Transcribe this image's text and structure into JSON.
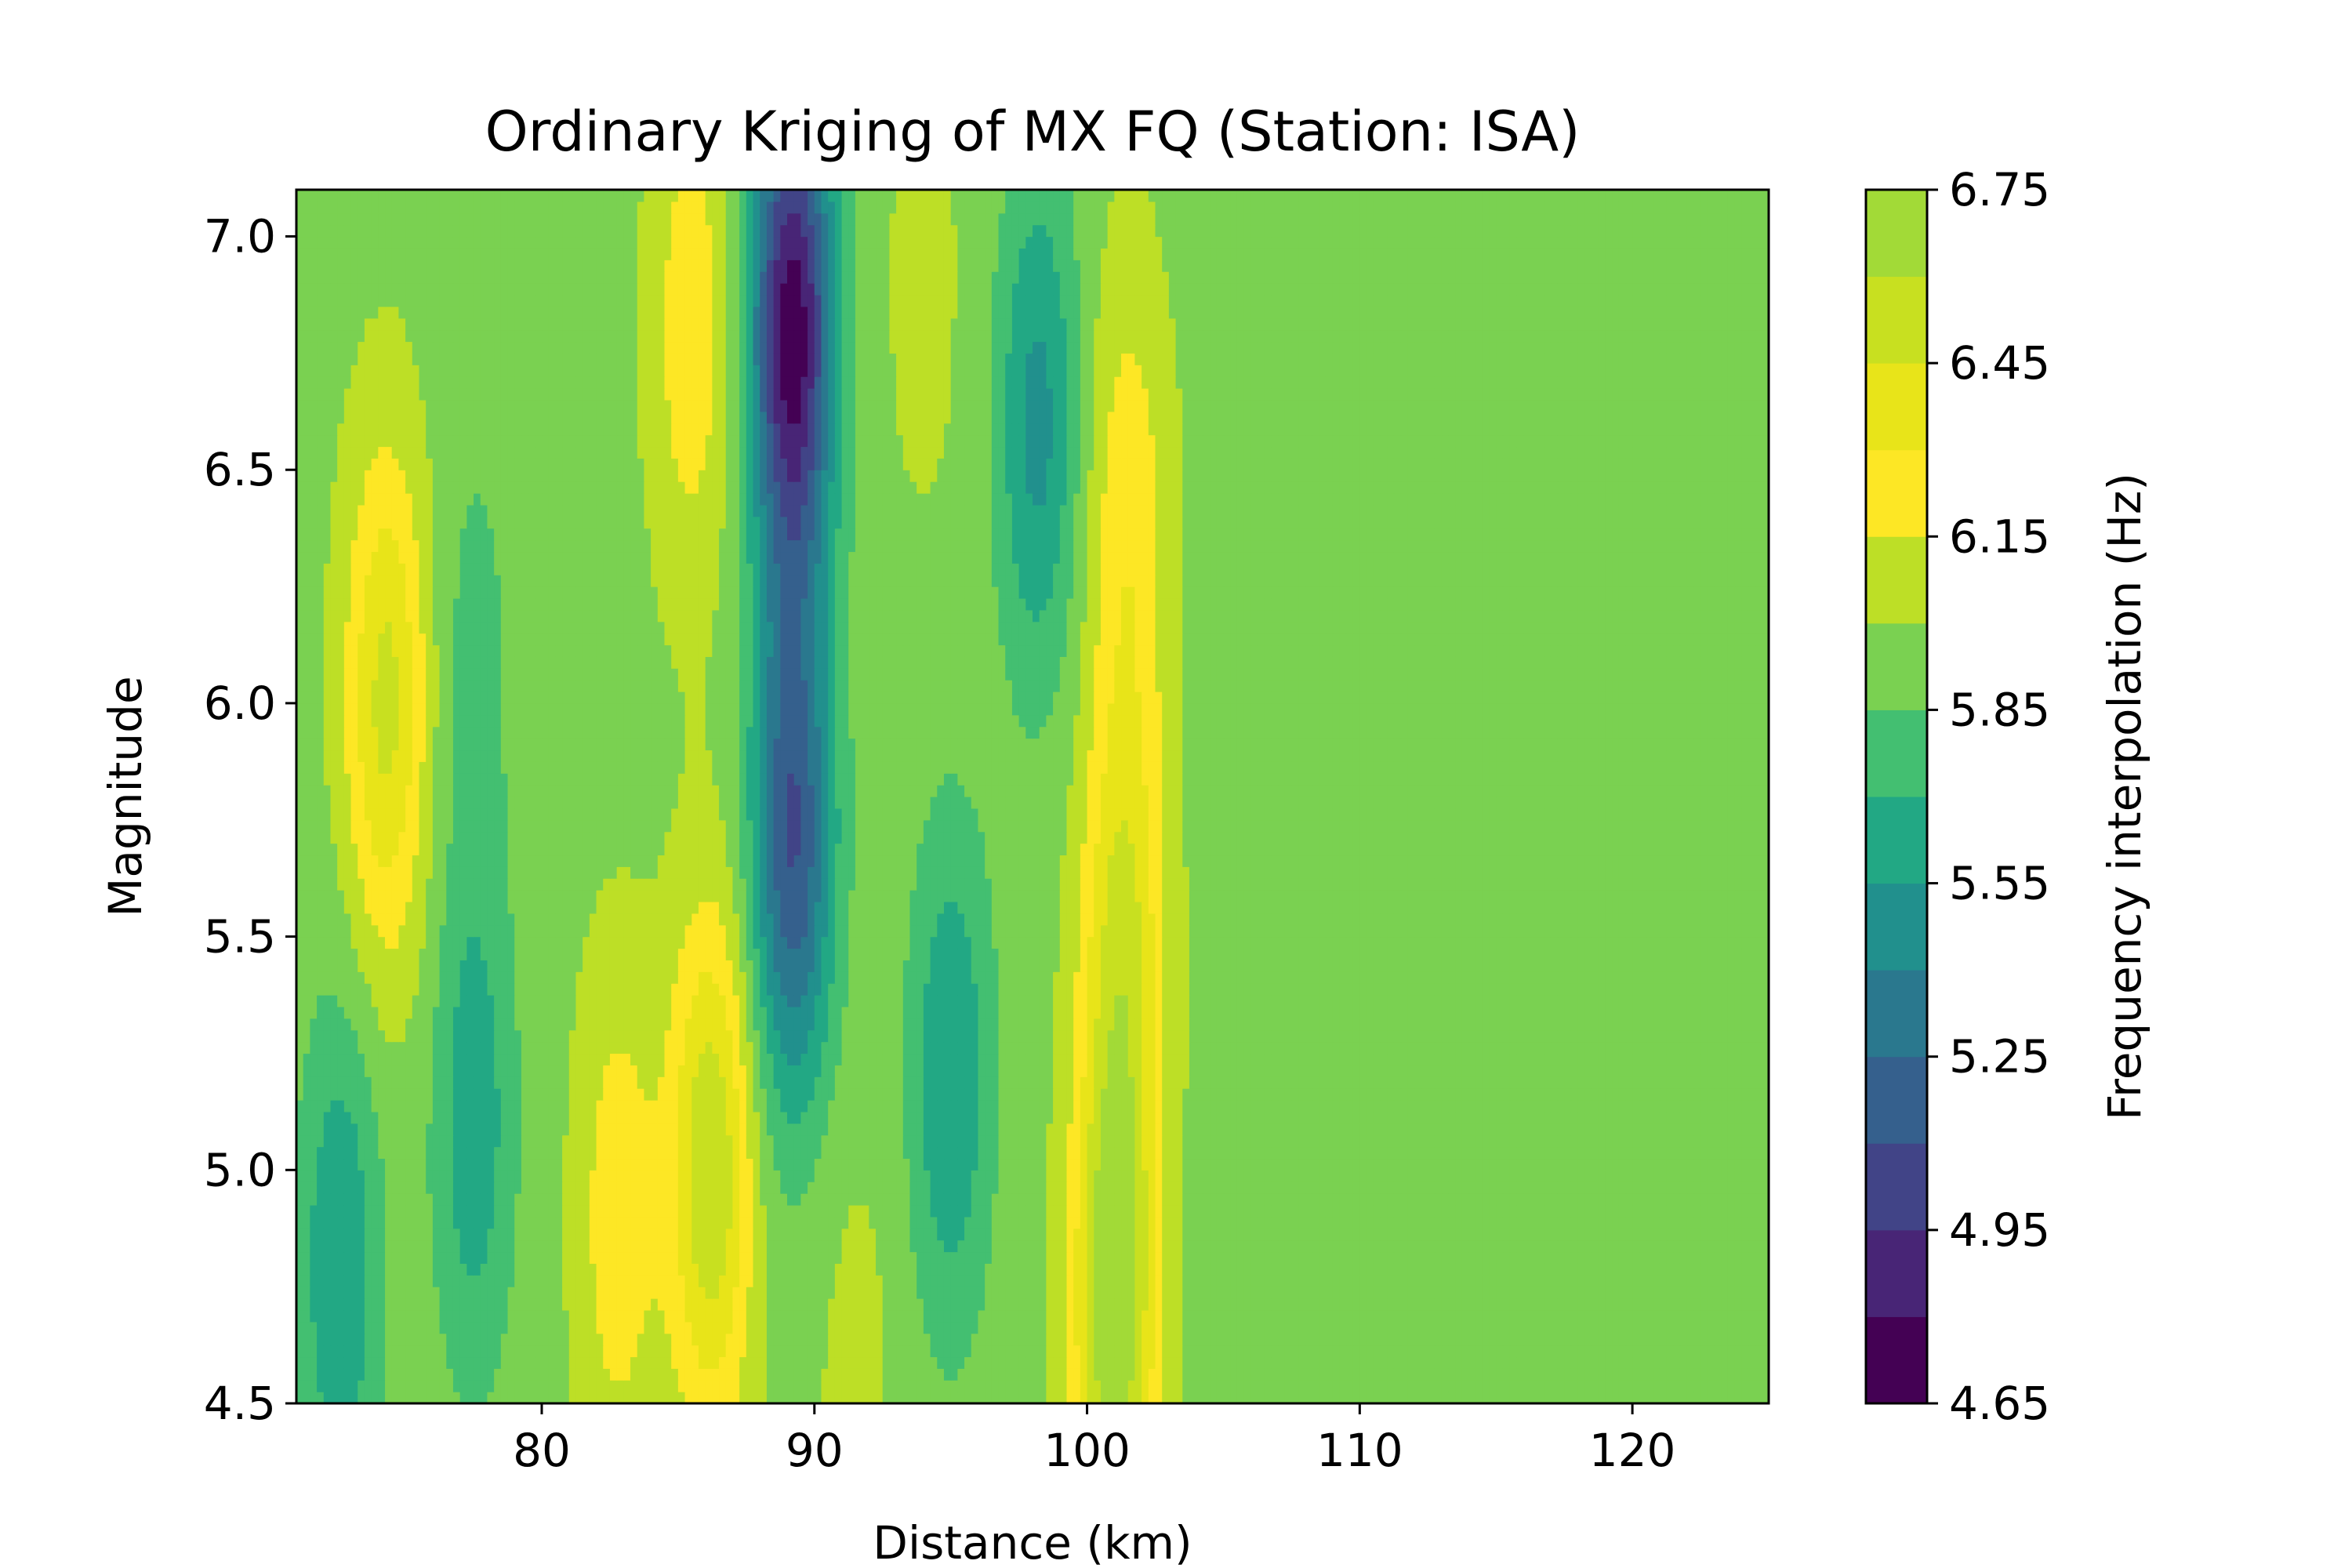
{
  "chart_data": {
    "type": "heatmap",
    "subtype": "filled-contour",
    "title": "Ordinary Kriging of MX FQ (Station: ISA)",
    "xlabel": "Distance (km)",
    "ylabel": "Magnitude",
    "xlim": [
      71,
      125
    ],
    "ylim": [
      4.5,
      7.1
    ],
    "xticks": [
      80,
      90,
      100,
      110,
      120
    ],
    "xtick_labels": [
      "80",
      "90",
      "100",
      "110",
      "120"
    ],
    "yticks": [
      4.5,
      5.0,
      5.5,
      6.0,
      6.5,
      7.0
    ],
    "ytick_labels": [
      "4.5",
      "5.0",
      "5.5",
      "6.0",
      "6.5",
      "7.0"
    ],
    "grid": false,
    "colormap": "viridis",
    "colorbar": {
      "label": "Frequency interpolation (Hz)",
      "range": [
        4.65,
        6.75
      ],
      "levels": [
        4.65,
        4.8,
        4.95,
        5.1,
        5.25,
        5.4,
        5.55,
        5.7,
        5.85,
        6.0,
        6.15,
        6.3,
        6.45,
        6.6,
        6.75
      ],
      "ticks": [
        4.65,
        4.95,
        5.25,
        5.55,
        5.85,
        6.15,
        6.45,
        6.75
      ],
      "tick_labels": [
        "4.65",
        "4.95",
        "5.25",
        "5.55",
        "5.85",
        "6.15",
        "6.45",
        "6.75"
      ],
      "band_colors": [
        "#440154",
        "#482576",
        "#414487",
        "#35608d",
        "#2a788e",
        "#21908d",
        "#22a884",
        "#43bf71",
        "#7ad151",
        "#bddf26",
        "#fde725",
        "#e8e419",
        "#c8e020",
        "#a2da37"
      ]
    },
    "background_value": 5.95,
    "features": [
      {
        "x": 74.3,
        "y": 6.0,
        "value": 6.5
      },
      {
        "x": 72.6,
        "y": 4.8,
        "value": 5.55
      },
      {
        "x": 77.5,
        "y": 5.1,
        "value": 5.6
      },
      {
        "x": 77.5,
        "y": 6.1,
        "value": 5.8
      },
      {
        "x": 82.8,
        "y": 4.9,
        "value": 6.25
      },
      {
        "x": 85.5,
        "y": 6.8,
        "value": 6.25
      },
      {
        "x": 86.2,
        "y": 5.0,
        "value": 6.6
      },
      {
        "x": 89.2,
        "y": 6.8,
        "value": 4.7
      },
      {
        "x": 89.2,
        "y": 5.7,
        "value": 5.1
      },
      {
        "x": 91.5,
        "y": 4.55,
        "value": 6.05
      },
      {
        "x": 94.0,
        "y": 6.9,
        "value": 6.05
      },
      {
        "x": 95.0,
        "y": 5.2,
        "value": 5.55
      },
      {
        "x": 98.2,
        "y": 6.6,
        "value": 5.5
      },
      {
        "x": 101.0,
        "y": 4.7,
        "value": 6.75
      },
      {
        "x": 101.3,
        "y": 5.5,
        "value": 6.45
      },
      {
        "x": 101.5,
        "y": 6.4,
        "value": 6.25
      }
    ]
  }
}
